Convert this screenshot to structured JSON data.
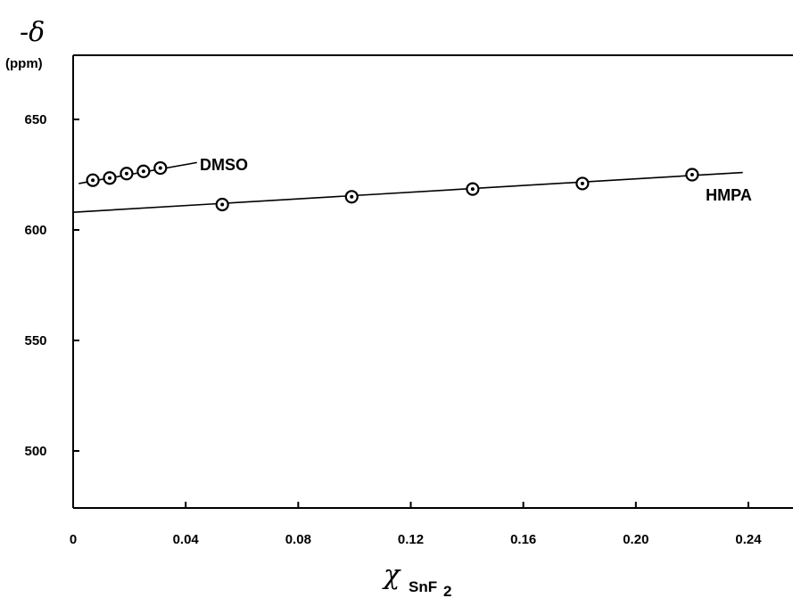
{
  "chart_data": {
    "type": "scatter",
    "title": "",
    "ylabel": "-δ",
    "ylabel_unit": "(ppm)",
    "xlabel_symbol": "χ",
    "xlabel_subscript": "SnF",
    "xlabel_subscript_index": "2",
    "xlim": [
      0,
      0.25
    ],
    "ylim": [
      475,
      665
    ],
    "x_ticks": [
      0,
      0.04,
      0.08,
      0.12,
      0.16,
      0.2,
      0.24
    ],
    "x_tick_labels": [
      "0",
      "0.04",
      "0.08",
      "0.12",
      "0.16",
      "0.20",
      "0.24"
    ],
    "y_ticks": [
      500,
      550,
      600,
      650
    ],
    "y_tick_labels": [
      "500",
      "550",
      "600",
      "650"
    ],
    "grid": false,
    "series": [
      {
        "name": "DMSO",
        "x": [
          0.007,
          0.013,
          0.019,
          0.025,
          0.031
        ],
        "y": [
          622.5,
          623.5,
          625.5,
          626.5,
          628
        ],
        "fit": {
          "x": [
            0.002,
            0.044
          ],
          "y": [
            621,
            630.5
          ]
        }
      },
      {
        "name": "HMPA",
        "x": [
          0.053,
          0.099,
          0.142,
          0.181,
          0.22
        ],
        "y": [
          611.5,
          615,
          618.5,
          621,
          625
        ],
        "fit": {
          "x": [
            0,
            0.238
          ],
          "y": [
            608,
            626
          ]
        }
      }
    ]
  }
}
